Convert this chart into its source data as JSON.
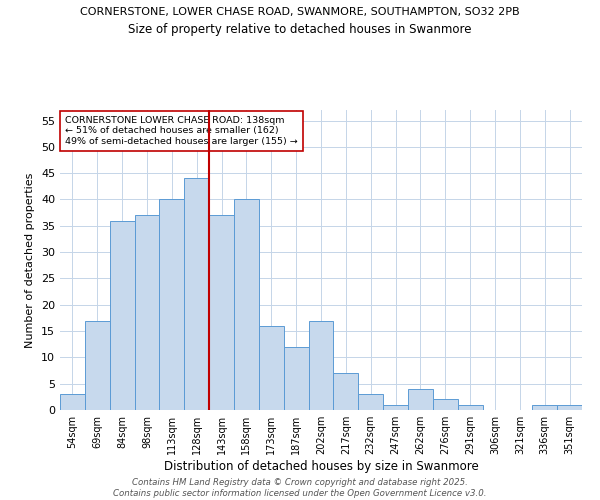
{
  "title_line1": "CORNERSTONE, LOWER CHASE ROAD, SWANMORE, SOUTHAMPTON, SO32 2PB",
  "title_line2": "Size of property relative to detached houses in Swanmore",
  "xlabel": "Distribution of detached houses by size in Swanmore",
  "ylabel": "Number of detached properties",
  "bar_labels": [
    "54sqm",
    "69sqm",
    "84sqm",
    "98sqm",
    "113sqm",
    "128sqm",
    "143sqm",
    "158sqm",
    "173sqm",
    "187sqm",
    "202sqm",
    "217sqm",
    "232sqm",
    "247sqm",
    "262sqm",
    "276sqm",
    "291sqm",
    "306sqm",
    "321sqm",
    "336sqm",
    "351sqm"
  ],
  "bar_values": [
    3,
    17,
    36,
    37,
    40,
    44,
    37,
    40,
    16,
    12,
    17,
    7,
    3,
    1,
    4,
    2,
    1,
    0,
    0,
    1,
    1
  ],
  "bar_color": "#c7d9ed",
  "bar_edge_color": "#5b9bd5",
  "vline_color": "#c00000",
  "ylim": [
    0,
    57
  ],
  "yticks": [
    0,
    5,
    10,
    15,
    20,
    25,
    30,
    35,
    40,
    45,
    50,
    55
  ],
  "annotation_text": "CORNERSTONE LOWER CHASE ROAD: 138sqm\n← 51% of detached houses are smaller (162)\n49% of semi-detached houses are larger (155) →",
  "annotation_box_color": "#ffffff",
  "annotation_box_edge": "#c00000",
  "footer_text": "Contains HM Land Registry data © Crown copyright and database right 2025.\nContains public sector information licensed under the Open Government Licence v3.0.",
  "background_color": "#ffffff",
  "grid_color": "#c5d5e8"
}
